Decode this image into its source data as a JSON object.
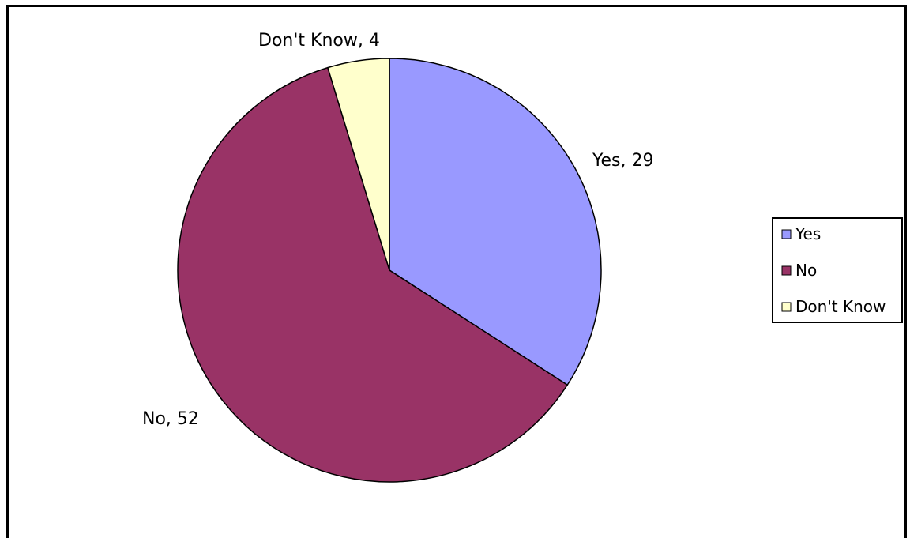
{
  "chart_data": {
    "type": "pie",
    "categories": [
      "Yes",
      "No",
      "Don't Know"
    ],
    "values": [
      29,
      52,
      4
    ],
    "colors": [
      "#9999FF",
      "#993366",
      "#FFFFCC"
    ],
    "data_labels": [
      "Yes, 29",
      "No, 52",
      "Don't Know, 4"
    ],
    "start_angle_deg": 0,
    "direction": "clockwise",
    "legend": {
      "placement": "right",
      "entries": [
        "Yes",
        "No",
        "Don't Know"
      ]
    }
  }
}
